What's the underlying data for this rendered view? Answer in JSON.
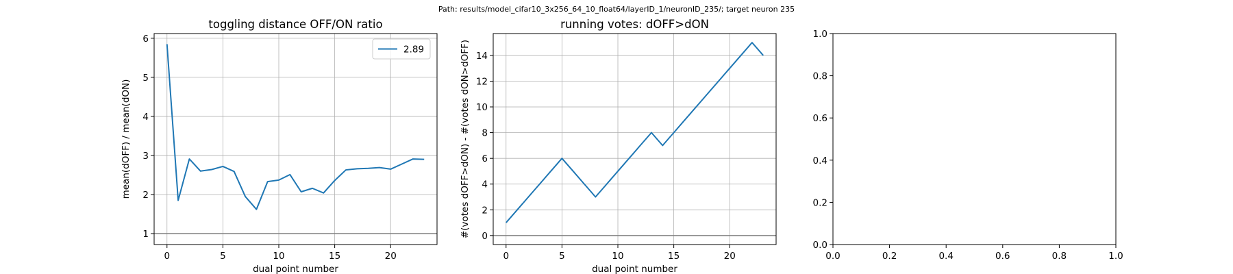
{
  "suptitle": "Path: results/model_cifar10_3x256_64_10_float64/layerID_1/neuronID_235/; target neuron 235",
  "colors": {
    "series": "#1f77b4",
    "grid": "#b0b0b0",
    "refline": "#808080",
    "axes": "#000000"
  },
  "chart_data": [
    {
      "type": "line",
      "title": "toggling distance OFF/ON ratio",
      "xlabel": "dual point number",
      "ylabel": "mean(dOFF) / mean(dON)",
      "xlim": [
        -1.15,
        24.15
      ],
      "ylim": [
        0.72,
        6.12
      ],
      "xticks": [
        0,
        5,
        10,
        15,
        20
      ],
      "yticks": [
        1,
        2,
        3,
        4,
        5,
        6
      ],
      "grid": true,
      "legend_position": "upper right",
      "hline": 1,
      "series": [
        {
          "name": "2.89",
          "x": [
            0,
            1,
            2,
            3,
            4,
            5,
            6,
            7,
            8,
            9,
            10,
            11,
            12,
            13,
            14,
            15,
            16,
            17,
            18,
            19,
            20,
            21,
            22,
            23
          ],
          "y": [
            5.85,
            1.85,
            2.91,
            2.6,
            2.64,
            2.72,
            2.59,
            1.95,
            1.62,
            2.33,
            2.37,
            2.51,
            2.07,
            2.16,
            2.04,
            2.36,
            2.63,
            2.66,
            2.67,
            2.69,
            2.65,
            2.78,
            2.91,
            2.9
          ]
        }
      ]
    },
    {
      "type": "line",
      "title": "running votes: dOFF>dON",
      "xlabel": "dual point number",
      "ylabel": "#(votes dOFF>dON) - #(votes dON>dOFF)",
      "xlim": [
        -1.15,
        24.15
      ],
      "ylim": [
        -0.7,
        15.7
      ],
      "xticks": [
        0,
        5,
        10,
        15,
        20
      ],
      "yticks": [
        0,
        2,
        4,
        6,
        8,
        10,
        12,
        14
      ],
      "grid": true,
      "hline": 0,
      "series": [
        {
          "x": [
            0,
            1,
            2,
            3,
            4,
            5,
            6,
            7,
            8,
            9,
            10,
            11,
            12,
            13,
            14,
            15,
            16,
            17,
            18,
            19,
            20,
            21,
            22,
            23
          ],
          "y": [
            1,
            2,
            3,
            4,
            5,
            6,
            5,
            4,
            3,
            4,
            5,
            6,
            7,
            8,
            7,
            8,
            9,
            10,
            11,
            12,
            13,
            14,
            15,
            14
          ]
        }
      ]
    },
    {
      "type": "line",
      "title": "",
      "xlabel": "",
      "ylabel": "",
      "xlim": [
        0,
        1
      ],
      "ylim": [
        0,
        1
      ],
      "xticks": [
        0.0,
        0.2,
        0.4,
        0.6,
        0.8,
        1.0
      ],
      "yticks": [
        0.0,
        0.2,
        0.4,
        0.6,
        0.8,
        1.0
      ],
      "tick_format": "fixed1",
      "grid": false,
      "series": []
    }
  ]
}
